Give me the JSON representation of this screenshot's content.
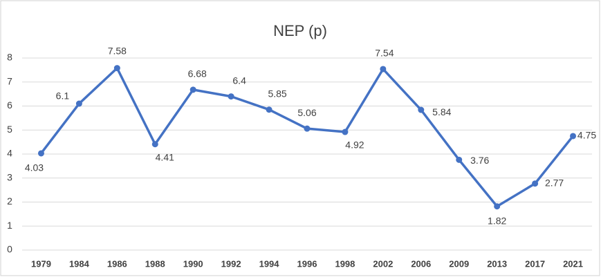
{
  "chart_data": {
    "type": "line",
    "title": "NEP (p)",
    "categories": [
      "1979",
      "1984",
      "1986",
      "1988",
      "1990",
      "1992",
      "1994",
      "1996",
      "1998",
      "2002",
      "2006",
      "2009",
      "2013",
      "2017",
      "2021"
    ],
    "values": [
      4.03,
      6.1,
      7.58,
      4.41,
      6.68,
      6.4,
      5.85,
      5.06,
      4.92,
      7.54,
      5.84,
      3.76,
      1.82,
      2.77,
      4.75
    ],
    "color": "#4472c4",
    "ylim": [
      0,
      8
    ],
    "yticks": [
      0,
      1,
      2,
      3,
      4,
      5,
      6,
      7,
      8
    ],
    "grid": true
  }
}
